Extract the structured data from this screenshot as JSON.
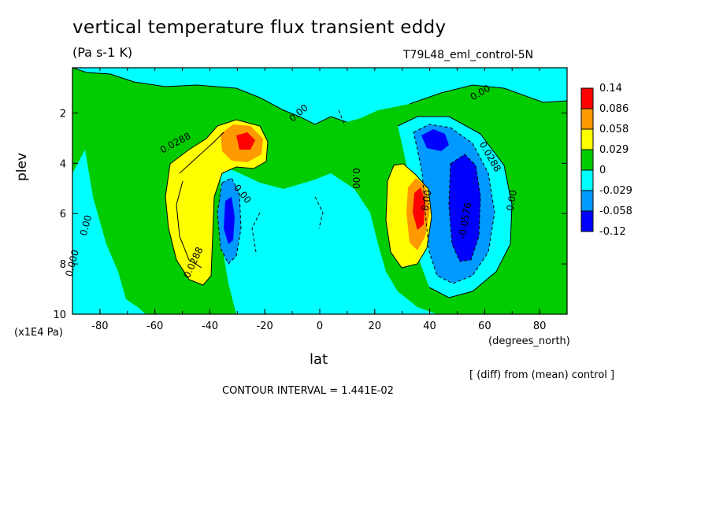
{
  "header": {
    "title": "vertical temperature flux transient eddy",
    "units": "(Pa s-1 K)",
    "dataset": "T79L48_eml_control-5N"
  },
  "footer": {
    "comparison": "[ (diff) from (mean) control ]",
    "contour_interval": "CONTOUR INTERVAL = 1.441E-02"
  },
  "chart_data": {
    "type": "heatmap",
    "title": "vertical temperature flux transient eddy",
    "xlabel": "lat",
    "xunit": "(degrees_north)",
    "ylabel": "plev",
    "yunit": "(x1E4 Pa)",
    "xlim": [
      -90,
      90
    ],
    "ylim": [
      10,
      0.2
    ],
    "xticks": [
      -80,
      -60,
      -40,
      -20,
      0,
      20,
      40,
      60,
      80
    ],
    "yticks": [
      2,
      4,
      6,
      8,
      10
    ],
    "legend_position": "right",
    "color_levels": [
      {
        "label": "0.14",
        "color": "#ff0000"
      },
      {
        "label": "0.086",
        "color": "#ff9900"
      },
      {
        "label": "0.058",
        "color": "#ffff00"
      },
      {
        "label": "0.029",
        "color": "#00cc00"
      },
      {
        "label": "0",
        "color": "#00ffff"
      },
      {
        "label": "-0.029",
        "color": "#0099ff"
      },
      {
        "label": "-0.058",
        "color": "#0000ff"
      },
      {
        "label": "-0.12",
        "color": ""
      }
    ],
    "contour_labels": [
      {
        "text": "0.0288",
        "lat": -52,
        "plev": 3.3,
        "angle": -28
      },
      {
        "text": "0.00",
        "lat": -7,
        "plev": 2.1,
        "angle": -40
      },
      {
        "text": "0.00",
        "lat": 59,
        "plev": 1.3,
        "angle": -30
      },
      {
        "text": "0.0288",
        "lat": 61,
        "plev": 3.8,
        "angle": 60
      },
      {
        "text": "0.00",
        "lat": 12,
        "plev": 4.6,
        "angle": 90
      },
      {
        "text": "0.00",
        "lat": -29,
        "plev": 5.3,
        "angle": 50
      },
      {
        "text": "0.0288",
        "lat": -45,
        "plev": 8.0,
        "angle": -65
      },
      {
        "text": "0.00",
        "lat": -84,
        "plev": 6.5,
        "angle": -75
      },
      {
        "text": "0.000",
        "lat": -89,
        "plev": 8.0,
        "angle": -75
      },
      {
        "text": "-0.0576",
        "lat": 54,
        "plev": 6.3,
        "angle": -80
      },
      {
        "text": "0.00",
        "lat": 71,
        "plev": 5.5,
        "angle": -80
      },
      {
        "text": "0.00",
        "lat": 40,
        "plev": 5.5,
        "angle": -80
      }
    ],
    "features": [
      {
        "name": "sh-max-upper",
        "lat": -27,
        "plev": 3.1,
        "level": "0.14"
      },
      {
        "name": "sh-positive-lobe",
        "lat": -50,
        "plev": 5.5,
        "level": "0.058"
      },
      {
        "name": "sh-negative-core",
        "lat": -33,
        "plev": 6.2,
        "level": "-0.058"
      },
      {
        "name": "nh-max-mid",
        "lat": 36,
        "plev": 6.0,
        "level": "0.14"
      },
      {
        "name": "nh-negative-core",
        "lat": 52,
        "plev": 5.5,
        "level": "-0.058"
      }
    ]
  }
}
